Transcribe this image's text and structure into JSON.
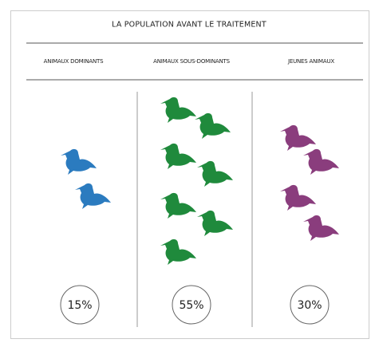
{
  "title": "LA POPULATION AVANT LE TRAITEMENT",
  "columns": [
    {
      "label": "ANIMAUX DOMINANTS",
      "percent": "15%"
    },
    {
      "label": "ANIMAUX SOUS-DOMINANTS",
      "percent": "55%"
    },
    {
      "label": "JEUNES ANIMAUX",
      "percent": "30%"
    }
  ]
}
